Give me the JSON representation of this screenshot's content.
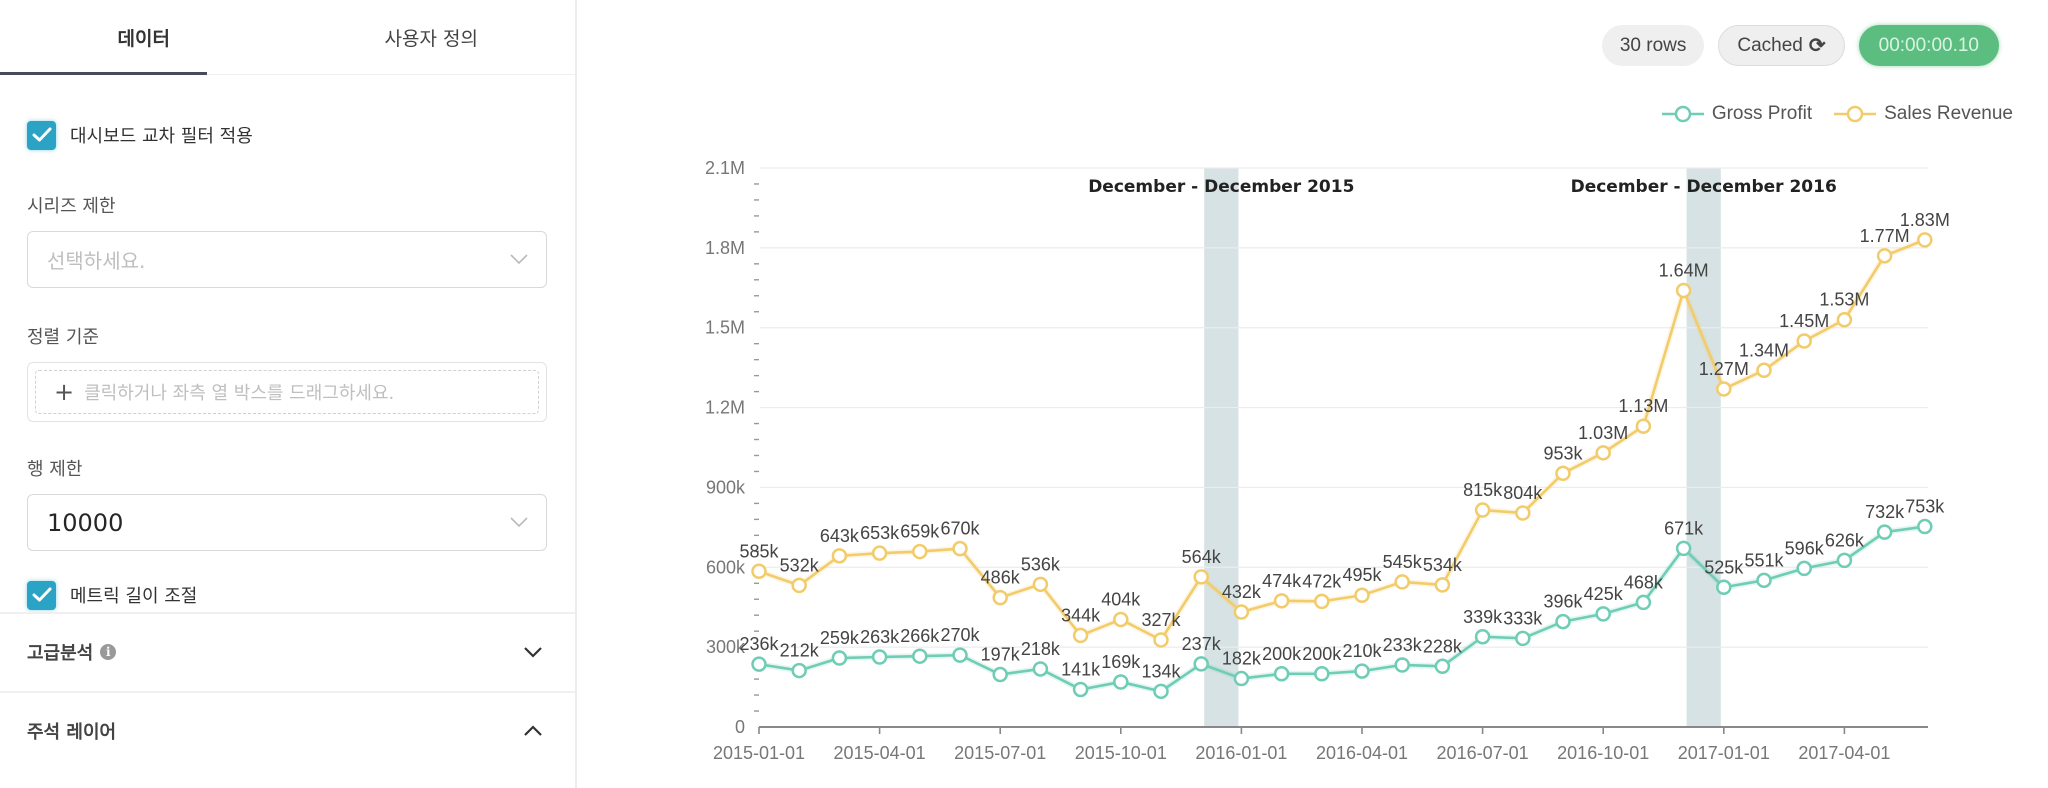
{
  "panel": {
    "tabs": [
      {
        "label": "데이터",
        "active": true
      },
      {
        "label": "사용자 정의",
        "active": false
      }
    ],
    "cross_filter": {
      "label": "대시보드 교차 필터 적용",
      "checked": true
    },
    "series_limit": {
      "label": "시리즈 제한",
      "placeholder": "선택하세요."
    },
    "sort_by": {
      "label": "정렬 기준",
      "hint": "클릭하거나 좌측 열 박스를 드래그하세요."
    },
    "row_limit": {
      "label": "행 제한",
      "value": "10000"
    },
    "metric_length": {
      "label": "메트릭 길이 조절",
      "checked": true
    },
    "sections": [
      {
        "title": "고급분석",
        "info": true,
        "expanded": false
      },
      {
        "title": "주석 레이어",
        "info": false,
        "expanded": true
      }
    ]
  },
  "badges": {
    "rows": "30 rows",
    "cached": "Cached",
    "timer": "00:00:00.10"
  },
  "colors": {
    "gross_profit": "#6fcdb5",
    "sales_revenue": "#f2cc6b",
    "band": "#c8d8da",
    "accent": "#2aa3c5",
    "timer_bg": "#5cbd80"
  },
  "chart_data": {
    "type": "line",
    "title": "",
    "xlabel": "",
    "ylabel": "",
    "ylim": [
      0,
      2100000
    ],
    "yticks": [
      {
        "value": 0,
        "label": "0"
      },
      {
        "value": 300000,
        "label": "300k"
      },
      {
        "value": 600000,
        "label": "600k"
      },
      {
        "value": 900000,
        "label": "900k"
      },
      {
        "value": 1200000,
        "label": "1.2M"
      },
      {
        "value": 1500000,
        "label": "1.5M"
      },
      {
        "value": 1800000,
        "label": "1.8M"
      },
      {
        "value": 2100000,
        "label": "2.1M"
      }
    ],
    "xticks": [
      {
        "index": 0,
        "label": "2015-01-01"
      },
      {
        "index": 3,
        "label": "2015-04-01"
      },
      {
        "index": 6,
        "label": "2015-07-01"
      },
      {
        "index": 9,
        "label": "2015-10-01"
      },
      {
        "index": 12,
        "label": "2016-01-01"
      },
      {
        "index": 15,
        "label": "2016-04-01"
      },
      {
        "index": 18,
        "label": "2016-07-01"
      },
      {
        "index": 21,
        "label": "2016-10-01"
      },
      {
        "index": 24,
        "label": "2017-01-01"
      },
      {
        "index": 27,
        "label": "2017-04-01"
      }
    ],
    "x": [
      "2015-01",
      "2015-02",
      "2015-03",
      "2015-04",
      "2015-05",
      "2015-06",
      "2015-07",
      "2015-08",
      "2015-09",
      "2015-10",
      "2015-11",
      "2015-12",
      "2016-01",
      "2016-02",
      "2016-03",
      "2016-04",
      "2016-05",
      "2016-06",
      "2016-07",
      "2016-08",
      "2016-09",
      "2016-10",
      "2016-11",
      "2016-12",
      "2017-01",
      "2017-02",
      "2017-03",
      "2017-04",
      "2017-05",
      "2017-06"
    ],
    "legend_position": "top-right",
    "grid": true,
    "series": [
      {
        "name": "Gross Profit",
        "color_key": "gross_profit",
        "values": [
          236000,
          212000,
          259000,
          263000,
          266000,
          270000,
          197000,
          218000,
          141000,
          169000,
          134000,
          237000,
          182000,
          200000,
          200000,
          210000,
          233000,
          228000,
          339000,
          333000,
          396000,
          425000,
          468000,
          671000,
          525000,
          551000,
          596000,
          626000,
          732000,
          753000
        ],
        "labels": [
          "236k",
          "212k",
          "259k",
          "263k",
          "266k",
          "270k",
          "197k",
          "218k",
          "141k",
          "169k",
          "134k",
          "237k",
          "182k",
          "200k",
          "200k",
          "210k",
          "233k",
          "228k",
          "339k",
          "333k",
          "396k",
          "425k",
          "468k",
          "671k",
          "525k",
          "551k",
          "596k",
          "626k",
          "732k",
          "753k"
        ]
      },
      {
        "name": "Sales Revenue",
        "color_key": "sales_revenue",
        "values": [
          585000,
          532000,
          643000,
          653000,
          659000,
          670000,
          486000,
          536000,
          344000,
          404000,
          327000,
          564000,
          432000,
          474000,
          472000,
          495000,
          545000,
          534000,
          815000,
          804000,
          953000,
          1030000,
          1130000,
          1640000,
          1270000,
          1340000,
          1450000,
          1530000,
          1770000,
          1830000
        ],
        "labels": [
          "585k",
          "532k",
          "643k",
          "653k",
          "659k",
          "670k",
          "486k",
          "536k",
          "344k",
          "404k",
          "327k",
          "564k",
          "432k",
          "474k",
          "472k",
          "495k",
          "545k",
          "534k",
          "815k",
          "804k",
          "953k",
          "1.03M",
          "1.13M",
          "1.64M",
          "1.27M",
          "1.34M",
          "1.45M",
          "1.53M",
          "1.77M",
          "1.83M"
        ]
      }
    ],
    "annotations": [
      {
        "label": "December - December 2015",
        "start_index": 11,
        "end_index": 12
      },
      {
        "label": "December - December 2016",
        "start_index": 23,
        "end_index": 24
      }
    ]
  }
}
